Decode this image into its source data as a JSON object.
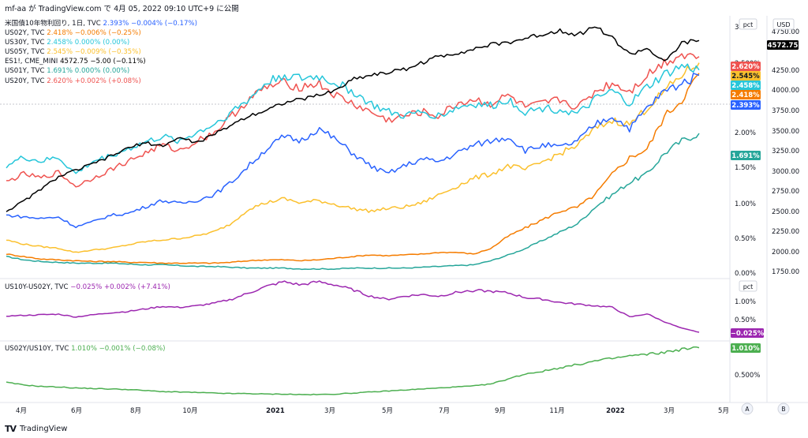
{
  "header": "mf-aa が TradingView.com で 4月 05, 2022 09:10 UTC+9 に公開",
  "footer": {
    "brand": "TradingView",
    "logo": "TV"
  },
  "badges": {
    "usd": "USD",
    "pct1": "pct",
    "pct2": "pct",
    "axis_a": "A",
    "axis_b": "B"
  },
  "colors": {
    "es": "#000000",
    "us10": "#2962ff",
    "us02": "#f57c00",
    "us30": "#26c6da",
    "us05": "#fbc02d",
    "us01": "#26a69a",
    "us20": "#ef5350",
    "spread": "#9c27b0",
    "ratio": "#4caf50"
  },
  "legend": {
    "us10": {
      "name": "米国債10年物利回り, 1日, TVC",
      "value": "2.393% −0.004% (−0.17%)"
    },
    "us02": {
      "name": "US02Y, TVC",
      "value": "2.418% −0.006% (−0.25%)"
    },
    "us30": {
      "name": "US30Y, TVC",
      "value": "2.458% 0.000% (0.00%)"
    },
    "us05": {
      "name": "US05Y, TVC",
      "value": "2.545% −0.009% (−0.35%)"
    },
    "es": {
      "name": "ES1!, CME_MINI",
      "value": "4572.75 −5.00 (−0.11%)"
    },
    "us01": {
      "name": "US01Y, TVC",
      "value": "1.691% 0.000% (0.00%)"
    },
    "us20": {
      "name": "US20Y, TVC",
      "value": "2.620% +0.002% (+0.08%)"
    },
    "spread": {
      "name": "US10Y-US02Y, TVC",
      "value": "−0.025% +0.002% (+7.41%)"
    },
    "ratio": {
      "name": "US02Y/US10Y, TVC",
      "value": "1.010% −0.001% (−0.08%)"
    }
  },
  "chart_data": [
    {
      "type": "line",
      "pane": "main",
      "x_labels": [
        "4月",
        "6月",
        "8月",
        "10月",
        "2021",
        "3月",
        "5月",
        "7月",
        "9月",
        "11月",
        "2022",
        "3月",
        "5月"
      ],
      "left_axis": {
        "unit": "pct",
        "ticks": [
          "3.",
          "2.500%",
          "2.00%",
          "1.50%",
          "1.00%",
          "0.50%",
          "0.00%"
        ]
      },
      "right_axis": {
        "unit": "USD",
        "ticks": [
          "4750.00",
          "4250.00",
          "4000.00",
          "3750.00",
          "3500.00",
          "3250.00",
          "3000.00",
          "2750.00",
          "2500.00",
          "2250.00",
          "2000.00",
          "1750.00"
        ]
      },
      "series": [
        {
          "name": "ES1!",
          "axis": "USD",
          "last": "4572.75",
          "values": [
            2480,
            2600,
            2750,
            2900,
            2980,
            3060,
            3150,
            3250,
            3320,
            3280,
            3380,
            3320,
            3420,
            3540,
            3650,
            3720,
            3810,
            3850,
            3900,
            3960,
            4100,
            4150,
            4180,
            4220,
            4300,
            4380,
            4420,
            4470,
            4520,
            4550,
            4600,
            4650,
            4700,
            4640,
            4750,
            4600,
            4400,
            4480,
            4300,
            4540,
            4572.75
          ]
        },
        {
          "name": "US10Y",
          "axis": "pct",
          "last": "2.393%",
          "values": [
            0.7,
            0.68,
            0.66,
            0.68,
            0.56,
            0.62,
            0.7,
            0.72,
            0.8,
            0.88,
            0.84,
            0.88,
            0.95,
            1.1,
            1.3,
            1.5,
            1.65,
            1.6,
            1.75,
            1.62,
            1.45,
            1.3,
            1.2,
            1.3,
            1.38,
            1.35,
            1.45,
            1.55,
            1.6,
            1.65,
            1.48,
            1.55,
            1.52,
            1.6,
            1.8,
            1.9,
            1.75,
            2.0,
            2.2,
            2.3,
            2.393
          ]
        },
        {
          "name": "US02Y",
          "axis": "pct",
          "last": "2.418%",
          "values": [
            0.23,
            0.2,
            0.17,
            0.16,
            0.15,
            0.14,
            0.14,
            0.13,
            0.13,
            0.12,
            0.12,
            0.12,
            0.12,
            0.13,
            0.15,
            0.16,
            0.16,
            0.15,
            0.16,
            0.18,
            0.2,
            0.22,
            0.21,
            0.22,
            0.23,
            0.25,
            0.25,
            0.23,
            0.3,
            0.45,
            0.55,
            0.65,
            0.75,
            0.8,
            0.95,
            1.2,
            1.4,
            1.5,
            1.9,
            2.1,
            2.418
          ]
        },
        {
          "name": "US30Y",
          "axis": "pct",
          "last": "2.458%",
          "values": [
            1.3,
            1.4,
            1.35,
            1.4,
            1.2,
            1.35,
            1.42,
            1.5,
            1.58,
            1.65,
            1.6,
            1.7,
            1.8,
            1.95,
            2.1,
            2.3,
            2.4,
            2.35,
            2.38,
            2.3,
            2.2,
            2.05,
            1.95,
            1.9,
            1.95,
            1.9,
            2.0,
            2.05,
            2.02,
            2.1,
            1.95,
            2.0,
            1.98,
            1.92,
            2.1,
            2.2,
            2.05,
            2.25,
            2.4,
            2.5,
            2.458
          ]
        },
        {
          "name": "US05Y",
          "axis": "pct",
          "last": "2.545%",
          "values": [
            0.4,
            0.35,
            0.32,
            0.3,
            0.25,
            0.28,
            0.3,
            0.34,
            0.38,
            0.4,
            0.42,
            0.45,
            0.5,
            0.6,
            0.78,
            0.85,
            0.9,
            0.85,
            0.88,
            0.83,
            0.78,
            0.75,
            0.78,
            0.8,
            0.85,
            0.95,
            1.05,
            1.15,
            1.2,
            1.3,
            1.25,
            1.35,
            1.45,
            1.55,
            1.75,
            1.85,
            1.8,
            2.0,
            2.2,
            2.4,
            2.545
          ]
        },
        {
          "name": "US01Y",
          "axis": "pct",
          "last": "1.691%",
          "values": [
            0.2,
            0.16,
            0.14,
            0.13,
            0.12,
            0.12,
            0.12,
            0.11,
            0.1,
            0.1,
            0.09,
            0.08,
            0.08,
            0.07,
            0.06,
            0.06,
            0.06,
            0.05,
            0.05,
            0.05,
            0.06,
            0.06,
            0.06,
            0.06,
            0.07,
            0.08,
            0.09,
            0.1,
            0.15,
            0.22,
            0.3,
            0.4,
            0.5,
            0.6,
            0.8,
            0.95,
            1.1,
            1.2,
            1.45,
            1.6,
            1.691
          ]
        },
        {
          "name": "US20Y",
          "axis": "pct",
          "last": "2.620%",
          "values": [
            1.1,
            1.2,
            1.15,
            1.22,
            1.05,
            1.15,
            1.25,
            1.35,
            1.45,
            1.55,
            1.48,
            1.6,
            1.7,
            1.9,
            2.1,
            2.25,
            2.3,
            2.25,
            2.3,
            2.15,
            2.05,
            1.95,
            1.85,
            1.9,
            1.95,
            1.9,
            2.05,
            2.1,
            2.05,
            2.15,
            2.0,
            2.05,
            2.1,
            2.0,
            2.2,
            2.3,
            2.2,
            2.4,
            2.55,
            2.65,
            2.62
          ]
        }
      ]
    },
    {
      "type": "line",
      "pane": "spread",
      "axis": {
        "unit": "pct",
        "ticks": [
          "1.00%",
          "0.50%"
        ]
      },
      "series": [
        {
          "name": "US10Y-US02Y",
          "last": "−0.025%",
          "values": [
            0.48,
            0.5,
            0.52,
            0.54,
            0.45,
            0.52,
            0.58,
            0.62,
            0.7,
            0.78,
            0.75,
            0.8,
            0.88,
            1.0,
            1.2,
            1.4,
            1.55,
            1.45,
            1.55,
            1.45,
            1.3,
            1.1,
            1.0,
            1.1,
            1.15,
            1.1,
            1.22,
            1.28,
            1.25,
            1.2,
            1.05,
            1.0,
            0.9,
            0.85,
            0.8,
            0.75,
            0.45,
            0.55,
            0.3,
            0.1,
            -0.025
          ]
        }
      ]
    },
    {
      "type": "line",
      "pane": "ratio",
      "axis": {
        "unit": "pct",
        "ticks": [
          "0.500%"
        ]
      },
      "series": [
        {
          "name": "US02Y/US10Y",
          "last": "1.010%",
          "values": [
            0.33,
            0.28,
            0.25,
            0.24,
            0.22,
            0.21,
            0.2,
            0.19,
            0.17,
            0.15,
            0.14,
            0.13,
            0.12,
            0.11,
            0.11,
            0.1,
            0.1,
            0.09,
            0.09,
            0.1,
            0.12,
            0.14,
            0.16,
            0.18,
            0.2,
            0.22,
            0.24,
            0.26,
            0.3,
            0.4,
            0.5,
            0.55,
            0.62,
            0.68,
            0.75,
            0.8,
            0.85,
            0.88,
            0.92,
            0.98,
            1.01
          ]
        }
      ]
    }
  ]
}
